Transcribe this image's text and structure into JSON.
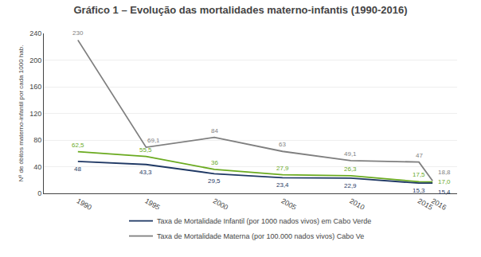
{
  "chart_data": {
    "type": "line",
    "title": "Gráfico 1 – Evolução das mortalidades materno-infantis (1990-2016)",
    "y_label": "Nº de óbitos materno-infantil por cada 1000 hab.",
    "x": [
      1990,
      1995,
      2000,
      2005,
      2010,
      2015,
      2016
    ],
    "xlim": [
      1987.5,
      2017.8
    ],
    "xticks": [
      1990,
      1995,
      2000,
      2005,
      2010,
      2015,
      2016
    ],
    "ylim": [
      0,
      240
    ],
    "yticks": [
      0,
      40,
      80,
      120,
      160,
      200,
      240
    ],
    "grid": true,
    "legend": "bottom",
    "data_labels": true,
    "series": [
      {
        "name": "Taxa de Mortalidade Infantil (por 1000 nados vivos) em Cabo Verde",
        "color": "#1f3864",
        "values": [
          48,
          43.3,
          29.5,
          23.4,
          22.9,
          15.3,
          15.4
        ],
        "value_labels": [
          "48",
          "43,3",
          "29,5",
          "23,4",
          "22,9",
          "15,3",
          "15,4"
        ]
      },
      {
        "color": "#6aaa1f",
        "values": [
          62.5,
          55.5,
          36,
          27.9,
          26.3,
          17.5,
          17.0
        ],
        "value_labels": [
          "62,5",
          "55,5",
          "36",
          "27,9",
          "26,3",
          "17,5",
          "17,0"
        ]
      },
      {
        "name": "Taxa de Mortalidade Materna (por 100.000 nados vivos) Cabo Ve",
        "color": "#7f7f7f",
        "values": [
          230,
          69.1,
          84,
          63,
          49.1,
          47,
          18.8
        ],
        "value_labels": [
          "230",
          "69,1",
          "84",
          "63",
          "49,1",
          "47",
          "18,8"
        ]
      }
    ]
  }
}
